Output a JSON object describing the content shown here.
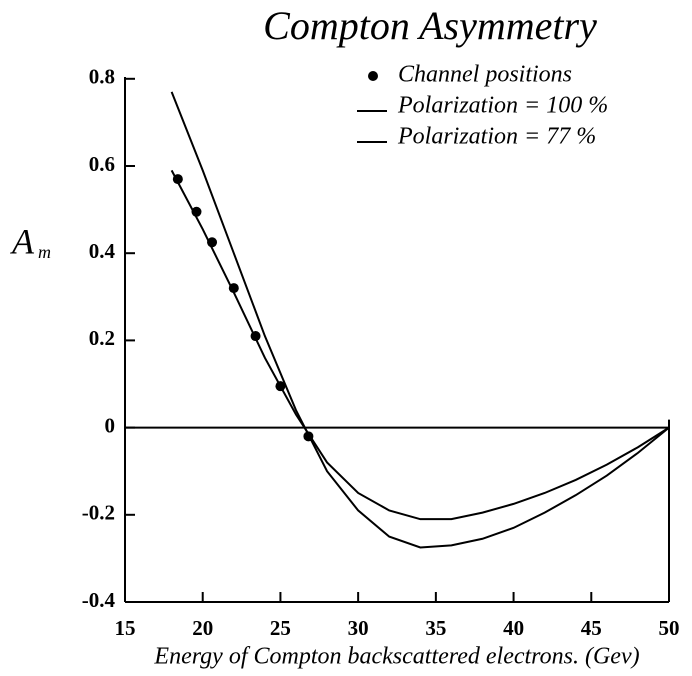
{
  "chart_data": {
    "type": "line",
    "title": "Compton Asymmetry",
    "xlabel": "Energy of Compton backscattered electrons. (Gev)",
    "ylabel": "A",
    "ylabel_sub": "m",
    "xlim": [
      15,
      50
    ],
    "xticks": [
      15,
      20,
      25,
      30,
      35,
      40,
      45,
      50
    ],
    "ylim": [
      -0.4,
      0.85
    ],
    "yticks": [
      -0.4,
      -0.2,
      0,
      0.2,
      0.4,
      0.6,
      0.8
    ],
    "zero_line": true,
    "legend": "upper right",
    "series": [
      {
        "name": "Channel positions",
        "color": "#000000",
        "marker": "dot",
        "x": [
          18.4,
          19.6,
          20.6,
          22,
          23.4,
          25,
          26.8
        ],
        "values": [
          0.57,
          0.495,
          0.425,
          0.32,
          0.21,
          0.095,
          -0.02
        ]
      },
      {
        "name": "Polarization = 100 %",
        "color": "#000000",
        "marker": "line",
        "x": [
          18,
          20,
          22,
          24,
          26,
          28,
          30,
          32,
          34,
          36,
          38,
          40,
          42,
          44,
          46,
          48,
          50
        ],
        "values": [
          0.77,
          0.59,
          0.4,
          0.21,
          0.04,
          -0.1,
          -0.19,
          -0.25,
          -0.275,
          -0.27,
          -0.255,
          -0.23,
          -0.195,
          -0.155,
          -0.11,
          -0.058,
          0
        ]
      },
      {
        "name": "Polarization = 77 %",
        "color": "#000000",
        "marker": "line",
        "x": [
          18,
          20,
          22,
          24,
          26,
          28,
          30,
          32,
          34,
          36,
          38,
          40,
          42,
          44,
          46,
          48,
          50
        ],
        "values": [
          0.59,
          0.455,
          0.31,
          0.16,
          0.03,
          -0.08,
          -0.15,
          -0.19,
          -0.21,
          -0.21,
          -0.195,
          -0.175,
          -0.15,
          -0.12,
          -0.085,
          -0.045,
          0
        ]
      }
    ]
  }
}
